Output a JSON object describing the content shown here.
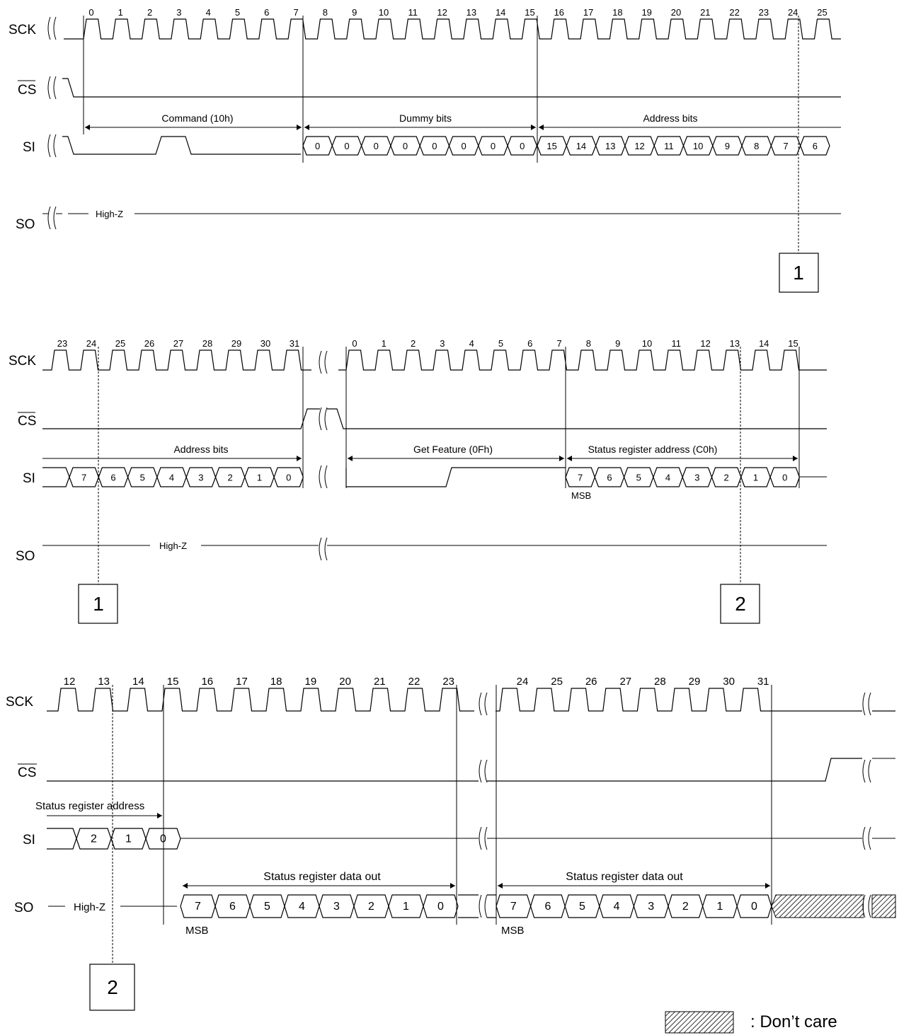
{
  "signals": {
    "sck": "SCK",
    "cs": "CS",
    "si": "SI",
    "so": "SO",
    "high_z": "High-Z"
  },
  "panel1": {
    "clock_numbers": [
      "0",
      "1",
      "2",
      "3",
      "4",
      "5",
      "6",
      "7",
      "8",
      "9",
      "10",
      "11",
      "12",
      "13",
      "14",
      "15",
      "16",
      "17",
      "18",
      "19",
      "20",
      "21",
      "22",
      "23",
      "24",
      "25"
    ],
    "command_label": "Command (10h)",
    "dummy_label": "Dummy bits",
    "address_label": "Address bits",
    "dummy_bits": [
      "0",
      "0",
      "0",
      "0",
      "0",
      "0",
      "0",
      "0"
    ],
    "address_bits": [
      "15",
      "14",
      "13",
      "12",
      "11",
      "10",
      "9",
      "8",
      "7",
      "6"
    ],
    "marker": "1"
  },
  "panel2": {
    "clock_numbers_a": [
      "23",
      "24",
      "25",
      "26",
      "27",
      "28",
      "29",
      "30",
      "31"
    ],
    "clock_numbers_b": [
      "0",
      "1",
      "2",
      "3",
      "4",
      "5",
      "6",
      "7",
      "8",
      "9",
      "10",
      "11",
      "12",
      "13",
      "14",
      "15"
    ],
    "address_label": "Address bits",
    "get_feature_label": "Get Feature (0Fh)",
    "status_addr_label": "Status register address (C0h)",
    "address_bits": [
      "7",
      "6",
      "5",
      "4",
      "3",
      "2",
      "1",
      "0"
    ],
    "status_addr_bits": [
      "7",
      "6",
      "5",
      "4",
      "3",
      "2",
      "1",
      "0"
    ],
    "msb": "MSB",
    "marker_left": "1",
    "marker_right": "2"
  },
  "panel3": {
    "clock_numbers_a": [
      "12",
      "13",
      "14",
      "15",
      "16",
      "17",
      "18",
      "19",
      "20",
      "21",
      "22",
      "23"
    ],
    "clock_numbers_b": [
      "24",
      "25",
      "26",
      "27",
      "28",
      "29",
      "30",
      "31"
    ],
    "status_addr_label": "Status register address",
    "data_out_label_a": "Status register data out",
    "data_out_label_b": "Status register data out",
    "si_bits": [
      "2",
      "1",
      "0"
    ],
    "data_bits_a": [
      "7",
      "6",
      "5",
      "4",
      "3",
      "2",
      "1",
      "0"
    ],
    "data_bits_b": [
      "7",
      "6",
      "5",
      "4",
      "3",
      "2",
      "1",
      "0"
    ],
    "msb_a": "MSB",
    "msb_b": "MSB",
    "marker": "2"
  },
  "legend": {
    "dont_care": ": Don’t care"
  }
}
